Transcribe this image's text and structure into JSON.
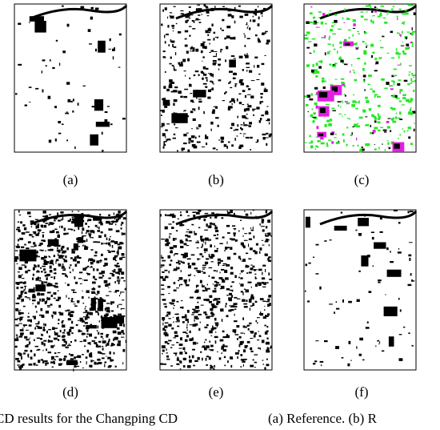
{
  "figure": {
    "panels": [
      {
        "label": "(a)"
      },
      {
        "label": "(b)"
      },
      {
        "label": "(c)"
      },
      {
        "label": "(d)"
      },
      {
        "label": "(e)"
      },
      {
        "label": "(f)"
      }
    ],
    "caption": [
      "CD results for the Changping CD",
      "(a) Reference. (b) R"
    ]
  }
}
